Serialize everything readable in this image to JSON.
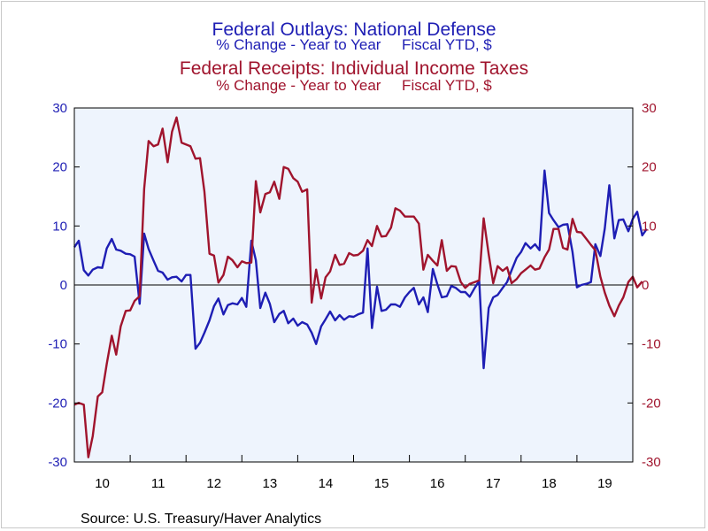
{
  "titles": {
    "series1_title": "Federal Outlays: National Defense",
    "series1_subtitle": "% Change - Year to Year     Fiscal YTD, $",
    "series2_title": "Federal Receipts: Individual Income Taxes",
    "series2_subtitle": "% Change - Year to Year     Fiscal YTD, $"
  },
  "source": "Source:  U.S. Treasury/Haver Analytics",
  "colors": {
    "series1": "#1e1eb4",
    "series2": "#a0142d",
    "plot_bg": "#eef4fd"
  },
  "chart_data": {
    "type": "line",
    "title": "Federal Outlays: National Defense",
    "x_unit": "fiscal year (decimal); tick labels show 2-digit year",
    "xlim": [
      2009.0,
      2019.0
    ],
    "x_tick_labels": [
      "10",
      "11",
      "12",
      "13",
      "14",
      "15",
      "16",
      "17",
      "18",
      "19"
    ],
    "ylim_left": [
      -30,
      30
    ],
    "ylim_right": [
      -30,
      30
    ],
    "y_ticks": [
      -30,
      -20,
      -10,
      0,
      10,
      20,
      30
    ],
    "zero_line": true,
    "grid": false,
    "legend": "titles-above",
    "series": [
      {
        "name": "Federal Outlays: National Defense",
        "axis": "left",
        "points": [
          [
            2009.0,
            6.4
          ],
          [
            2009.08,
            7.5
          ],
          [
            2009.17,
            2.5
          ],
          [
            2009.25,
            1.6
          ],
          [
            2009.33,
            2.6
          ],
          [
            2009.42,
            3.0
          ],
          [
            2009.5,
            2.9
          ],
          [
            2009.58,
            6.2
          ],
          [
            2009.67,
            7.8
          ],
          [
            2009.75,
            6.0
          ],
          [
            2009.83,
            5.8
          ],
          [
            2009.92,
            5.3
          ],
          [
            2010.0,
            5.2
          ],
          [
            2010.08,
            4.8
          ],
          [
            2010.17,
            -3.2
          ],
          [
            2010.25,
            8.7
          ],
          [
            2010.33,
            6.1
          ],
          [
            2010.42,
            4.1
          ],
          [
            2010.5,
            2.4
          ],
          [
            2010.58,
            2.1
          ],
          [
            2010.67,
            0.9
          ],
          [
            2010.75,
            1.3
          ],
          [
            2010.83,
            1.4
          ],
          [
            2010.92,
            0.6
          ],
          [
            2011.0,
            1.7
          ],
          [
            2011.08,
            1.7
          ],
          [
            2011.17,
            -10.8
          ],
          [
            2011.25,
            -9.8
          ],
          [
            2011.33,
            -8.1
          ],
          [
            2011.42,
            -6.0
          ],
          [
            2011.5,
            -3.6
          ],
          [
            2011.58,
            -2.3
          ],
          [
            2011.67,
            -5.0
          ],
          [
            2011.75,
            -3.4
          ],
          [
            2011.83,
            -3.1
          ],
          [
            2011.92,
            -3.3
          ],
          [
            2012.0,
            -2.2
          ],
          [
            2012.08,
            -3.7
          ],
          [
            2012.17,
            7.5
          ],
          [
            2012.25,
            4.2
          ],
          [
            2012.33,
            -3.9
          ],
          [
            2012.42,
            -1.3
          ],
          [
            2012.5,
            -3.2
          ],
          [
            2012.58,
            -6.3
          ],
          [
            2012.67,
            -4.9
          ],
          [
            2012.75,
            -4.4
          ],
          [
            2012.83,
            -6.5
          ],
          [
            2012.92,
            -5.7
          ],
          [
            2013.0,
            -6.9
          ],
          [
            2013.08,
            -6.3
          ],
          [
            2013.17,
            -6.7
          ],
          [
            2013.25,
            -8.1
          ],
          [
            2013.33,
            -10.0
          ],
          [
            2013.42,
            -7.0
          ],
          [
            2013.5,
            -5.8
          ],
          [
            2013.58,
            -4.5
          ],
          [
            2013.67,
            -6.0
          ],
          [
            2013.75,
            -5.1
          ],
          [
            2013.83,
            -5.9
          ],
          [
            2013.92,
            -5.3
          ],
          [
            2014.0,
            -5.4
          ],
          [
            2014.08,
            -5.0
          ],
          [
            2014.17,
            -4.7
          ],
          [
            2014.25,
            6.2
          ],
          [
            2014.33,
            -7.3
          ],
          [
            2014.42,
            -0.3
          ],
          [
            2014.5,
            -4.4
          ],
          [
            2014.58,
            -4.2
          ],
          [
            2014.67,
            -3.3
          ],
          [
            2014.75,
            -3.3
          ],
          [
            2014.83,
            -3.7
          ],
          [
            2014.92,
            -2.1
          ],
          [
            2015.0,
            -1.2
          ],
          [
            2015.08,
            -0.5
          ],
          [
            2015.17,
            -3.3
          ],
          [
            2015.25,
            -2.1
          ],
          [
            2015.33,
            -4.6
          ],
          [
            2015.42,
            2.7
          ],
          [
            2015.5,
            0.1
          ],
          [
            2015.58,
            -2.1
          ],
          [
            2015.67,
            -1.9
          ],
          [
            2015.75,
            -0.2
          ],
          [
            2015.83,
            -0.5
          ],
          [
            2015.92,
            -1.2
          ],
          [
            2016.0,
            -1.2
          ],
          [
            2016.08,
            -2.0
          ],
          [
            2016.17,
            -0.5
          ],
          [
            2016.25,
            0.7
          ],
          [
            2016.33,
            -14.1
          ],
          [
            2016.42,
            -3.9
          ],
          [
            2016.5,
            -2.1
          ],
          [
            2016.58,
            -1.7
          ],
          [
            2016.67,
            -0.5
          ],
          [
            2016.75,
            0.5
          ],
          [
            2016.83,
            2.5
          ],
          [
            2016.92,
            4.6
          ],
          [
            2017.0,
            5.6
          ],
          [
            2017.08,
            7.1
          ],
          [
            2017.17,
            6.2
          ],
          [
            2017.25,
            6.9
          ],
          [
            2017.33,
            5.9
          ],
          [
            2017.42,
            19.4
          ],
          [
            2017.5,
            12.2
          ],
          [
            2017.58,
            11.0
          ],
          [
            2017.67,
            9.8
          ],
          [
            2017.75,
            10.2
          ],
          [
            2017.83,
            10.3
          ],
          [
            2017.92,
            5.6
          ],
          [
            2018.0,
            -0.4
          ],
          [
            2018.08,
            0.0
          ],
          [
            2018.17,
            0.2
          ],
          [
            2018.25,
            0.5
          ],
          [
            2018.33,
            6.9
          ],
          [
            2018.42,
            4.9
          ],
          [
            2018.5,
            9.6
          ],
          [
            2018.58,
            16.9
          ],
          [
            2018.67,
            7.9
          ],
          [
            2018.75,
            11.0
          ],
          [
            2018.83,
            11.1
          ],
          [
            2018.92,
            9.1
          ],
          [
            2019.0,
            11.2
          ],
          [
            2019.08,
            12.4
          ],
          [
            2019.17,
            8.4
          ],
          [
            2019.25,
            9.5
          ]
        ]
      },
      {
        "name": "Federal Receipts: Individual Income Taxes",
        "axis": "right",
        "points": [
          [
            2009.0,
            -20.3
          ],
          [
            2009.08,
            -20.0
          ],
          [
            2009.17,
            -20.3
          ],
          [
            2009.25,
            -29.2
          ],
          [
            2009.33,
            -25.6
          ],
          [
            2009.42,
            -18.9
          ],
          [
            2009.5,
            -18.2
          ],
          [
            2009.58,
            -13.4
          ],
          [
            2009.67,
            -8.6
          ],
          [
            2009.75,
            -11.8
          ],
          [
            2009.83,
            -7.0
          ],
          [
            2009.92,
            -4.4
          ],
          [
            2010.0,
            -4.3
          ],
          [
            2010.08,
            -2.7
          ],
          [
            2010.17,
            -1.9
          ],
          [
            2010.25,
            16.3
          ],
          [
            2010.33,
            24.4
          ],
          [
            2010.42,
            23.5
          ],
          [
            2010.5,
            23.8
          ],
          [
            2010.58,
            26.5
          ],
          [
            2010.67,
            20.8
          ],
          [
            2010.75,
            26.0
          ],
          [
            2010.83,
            28.4
          ],
          [
            2010.92,
            24.1
          ],
          [
            2011.0,
            23.8
          ],
          [
            2011.08,
            23.5
          ],
          [
            2011.17,
            21.4
          ],
          [
            2011.25,
            21.5
          ],
          [
            2011.33,
            15.8
          ],
          [
            2011.42,
            5.3
          ],
          [
            2011.5,
            5.0
          ],
          [
            2011.58,
            0.4
          ],
          [
            2011.67,
            1.7
          ],
          [
            2011.75,
            4.8
          ],
          [
            2011.83,
            4.2
          ],
          [
            2011.92,
            3.0
          ],
          [
            2012.0,
            4.0
          ],
          [
            2012.08,
            3.7
          ],
          [
            2012.17,
            3.8
          ],
          [
            2012.25,
            17.6
          ],
          [
            2012.33,
            12.3
          ],
          [
            2012.42,
            15.4
          ],
          [
            2012.5,
            15.7
          ],
          [
            2012.58,
            17.5
          ],
          [
            2012.67,
            14.6
          ],
          [
            2012.75,
            20.0
          ],
          [
            2012.83,
            19.7
          ],
          [
            2012.92,
            18.1
          ],
          [
            2013.0,
            17.5
          ],
          [
            2013.08,
            15.8
          ],
          [
            2013.17,
            16.2
          ],
          [
            2013.25,
            -3.0
          ],
          [
            2013.33,
            2.6
          ],
          [
            2013.42,
            -2.3
          ],
          [
            2013.5,
            1.3
          ],
          [
            2013.58,
            2.3
          ],
          [
            2013.67,
            5.1
          ],
          [
            2013.75,
            3.4
          ],
          [
            2013.83,
            3.6
          ],
          [
            2013.92,
            5.4
          ],
          [
            2014.0,
            5.0
          ],
          [
            2014.08,
            5.1
          ],
          [
            2014.17,
            5.8
          ],
          [
            2014.25,
            7.6
          ],
          [
            2014.33,
            6.6
          ],
          [
            2014.42,
            10.0
          ],
          [
            2014.5,
            8.2
          ],
          [
            2014.58,
            8.3
          ],
          [
            2014.67,
            9.7
          ],
          [
            2014.75,
            13.0
          ],
          [
            2014.83,
            12.6
          ],
          [
            2014.92,
            11.6
          ],
          [
            2015.0,
            11.6
          ],
          [
            2015.08,
            11.6
          ],
          [
            2015.17,
            10.4
          ],
          [
            2015.25,
            2.6
          ],
          [
            2015.33,
            5.1
          ],
          [
            2015.42,
            4.1
          ],
          [
            2015.5,
            3.3
          ],
          [
            2015.58,
            7.6
          ],
          [
            2015.67,
            2.4
          ],
          [
            2015.75,
            3.2
          ],
          [
            2015.83,
            3.1
          ],
          [
            2015.92,
            0.5
          ],
          [
            2016.0,
            -0.5
          ],
          [
            2016.08,
            0.2
          ],
          [
            2016.17,
            0.5
          ],
          [
            2016.25,
            0.8
          ],
          [
            2016.33,
            11.3
          ],
          [
            2016.42,
            5.2
          ],
          [
            2016.5,
            0.3
          ],
          [
            2016.58,
            3.2
          ],
          [
            2016.67,
            2.4
          ],
          [
            2016.75,
            3.0
          ],
          [
            2016.83,
            0.3
          ],
          [
            2016.92,
            1.0
          ],
          [
            2017.0,
            2.0
          ],
          [
            2017.08,
            2.6
          ],
          [
            2017.17,
            3.3
          ],
          [
            2017.25,
            2.6
          ],
          [
            2017.33,
            2.8
          ],
          [
            2017.42,
            4.7
          ],
          [
            2017.5,
            6.0
          ],
          [
            2017.58,
            9.5
          ],
          [
            2017.67,
            9.5
          ],
          [
            2017.75,
            6.3
          ],
          [
            2017.83,
            6.0
          ],
          [
            2017.92,
            11.2
          ],
          [
            2018.0,
            9.0
          ],
          [
            2018.08,
            8.9
          ],
          [
            2018.17,
            7.8
          ],
          [
            2018.25,
            6.8
          ],
          [
            2018.33,
            5.9
          ],
          [
            2018.42,
            1.4
          ],
          [
            2018.5,
            -1.3
          ],
          [
            2018.58,
            -3.5
          ],
          [
            2018.67,
            -5.3
          ],
          [
            2018.75,
            -3.5
          ],
          [
            2018.83,
            -2.1
          ],
          [
            2018.92,
            0.5
          ],
          [
            2019.0,
            1.4
          ],
          [
            2019.08,
            -0.4
          ],
          [
            2019.17,
            0.6
          ]
        ]
      }
    ]
  }
}
